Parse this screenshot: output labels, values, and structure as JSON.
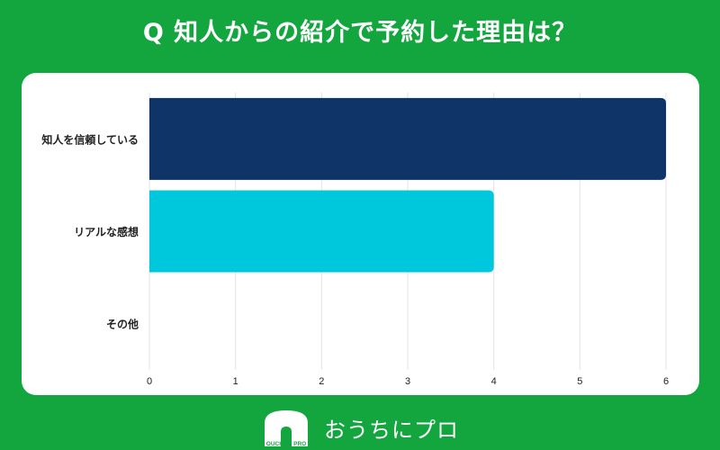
{
  "title": "Q 知人からの紹介で予約した理由は？",
  "chart_data": {
    "type": "bar",
    "orientation": "horizontal",
    "categories": [
      "知人を信頼している",
      "リアルな感想",
      "その他"
    ],
    "values": [
      6,
      4,
      0
    ],
    "xlim": [
      0,
      6
    ],
    "xticks": [
      "0",
      "1",
      "2",
      "3",
      "4",
      "5",
      "6"
    ],
    "bar_colors": [
      "#0e3468",
      "#00c8dc",
      "#cccccc"
    ],
    "grid": true,
    "legend": "none"
  },
  "footer": {
    "logo_text": "OUCHI ni PRO",
    "brand": "おうちにプロ"
  },
  "colors": {
    "background": "#13a53e",
    "card": "#ffffff",
    "grid": "#e3e3e3"
  }
}
